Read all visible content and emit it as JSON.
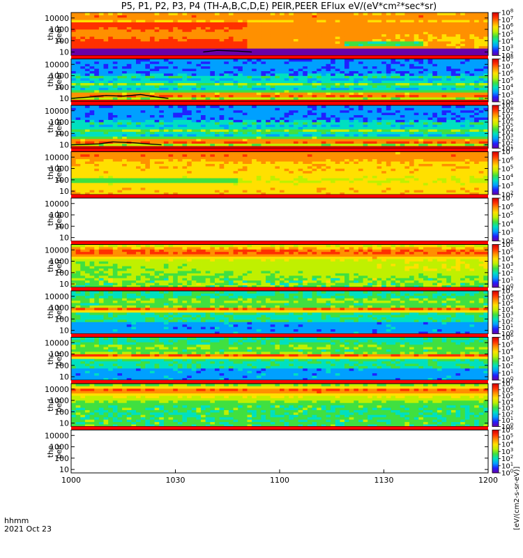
{
  "chart_data": {
    "type": "heatmap",
    "title": "P5, P1, P2, P3, P4 (TH-A,B,C,D,E) PEIR,PEER EFlux eV/(eV*cm²*sec*sr)",
    "x_axis": {
      "ticks": [
        {
          "label": "1000",
          "minutes": 0
        },
        {
          "label": "1030",
          "minutes": 30
        },
        {
          "label": "1100",
          "minutes": 60
        },
        {
          "label": "1130",
          "minutes": 90
        },
        {
          "label": "1200",
          "minutes": 120
        }
      ],
      "range_minutes": [
        0,
        120
      ],
      "label": "hhmm",
      "date": "2021 Oct 23"
    },
    "y_axis": {
      "scale": "log",
      "range": [
        5,
        30000
      ],
      "ticks": [
        "10",
        "100",
        "1000",
        "10000"
      ]
    },
    "colorbar_label": "[eV/(cm2-s-sr-eV)]",
    "panels": [
      {
        "name": "tha peer",
        "probe": "tha",
        "species": "peer",
        "has_data": true,
        "cb_exp": [
          2,
          8
        ],
        "pattern": "ea",
        "overlay": [
          [
            38,
            10
          ],
          [
            42,
            14
          ],
          [
            48,
            12
          ],
          [
            52,
            10
          ]
        ]
      },
      {
        "name": "thb peer",
        "probe": "thb",
        "species": "peer",
        "has_data": true,
        "cb_exp": [
          2,
          8
        ],
        "pattern": "eb",
        "overlay": [
          [
            0,
            10
          ],
          [
            5,
            13
          ],
          [
            10,
            18
          ],
          [
            15,
            16
          ],
          [
            20,
            22
          ],
          [
            24,
            14
          ],
          [
            28,
            10
          ]
        ]
      },
      {
        "name": "thc peer",
        "probe": "thc",
        "species": "peer",
        "has_data": true,
        "cb_exp": [
          1,
          9
        ],
        "pattern": "eb",
        "overlay": [
          [
            0,
            10
          ],
          [
            8,
            12
          ],
          [
            12,
            18
          ],
          [
            18,
            15
          ],
          [
            22,
            12
          ],
          [
            26,
            10
          ]
        ]
      },
      {
        "name": "thd peer",
        "probe": "thd",
        "species": "peer",
        "has_data": true,
        "cb_exp": [
          2,
          7
        ],
        "pattern": "ed",
        "overlay": []
      },
      {
        "name": "the peer",
        "probe": "the",
        "species": "peer",
        "has_data": false,
        "cb_exp": [
          2,
          7
        ],
        "pattern": "",
        "overlay": []
      },
      {
        "name": "tha peir",
        "probe": "tha",
        "species": "peir",
        "has_data": true,
        "cb_exp": [
          0,
          6
        ],
        "pattern": "ia",
        "overlay": []
      },
      {
        "name": "thb peir",
        "probe": "thb",
        "species": "peir",
        "has_data": true,
        "cb_exp": [
          0,
          7
        ],
        "pattern": "ib",
        "overlay": []
      },
      {
        "name": "thc peir",
        "probe": "thc",
        "species": "peir",
        "has_data": true,
        "cb_exp": [
          0,
          6
        ],
        "pattern": "ib",
        "overlay": []
      },
      {
        "name": "thd peir",
        "probe": "thd",
        "species": "peir",
        "has_data": true,
        "cb_exp": [
          0,
          7
        ],
        "pattern": "id",
        "overlay": []
      },
      {
        "name": "the peir",
        "probe": "the",
        "species": "peir",
        "has_data": false,
        "cb_exp": [
          0,
          6
        ],
        "pattern": "",
        "overlay": []
      }
    ],
    "separator_color": "#ff0000",
    "colormap": [
      "#6a00a8",
      "#2020ff",
      "#00a0ff",
      "#00e0c0",
      "#40e040",
      "#c0f000",
      "#ffe000",
      "#ff9000",
      "#ff3000",
      "#d00000"
    ]
  }
}
